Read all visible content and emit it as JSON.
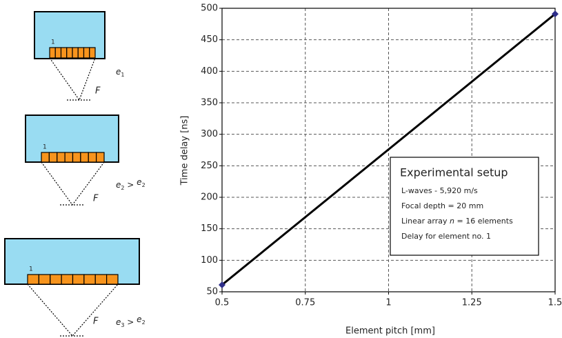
{
  "diagrams": [
    {
      "element_label": "1",
      "pitch_label": [
        "e",
        "1"
      ],
      "focus_label": "F"
    },
    {
      "element_label": "1",
      "pitch_label": [
        "e",
        "2",
        " > ",
        "e",
        "2"
      ],
      "focus_label": "F"
    },
    {
      "element_label": "1",
      "pitch_label": [
        "e",
        "3",
        " > ",
        "e",
        "2"
      ],
      "focus_label": "F"
    }
  ],
  "chart_data": {
    "type": "line",
    "x_label": "Element pitch [mm]",
    "y_label": "Time delay [ns]",
    "x": [
      0.5,
      1.5
    ],
    "series": [
      {
        "color": "#000000",
        "marker_color": "#2e2e8a",
        "values": [
          61,
          491
        ]
      }
    ],
    "xlim": [
      0.5,
      1.5
    ],
    "xticks": [
      0.5,
      0.75,
      1,
      1.25,
      1.5
    ],
    "ylim": [
      50,
      500
    ],
    "yticks": [
      50,
      100,
      150,
      200,
      250,
      300,
      350,
      400,
      450,
      500
    ],
    "grid": true,
    "annotation": {
      "title": "Experimental setup",
      "lines": [
        [
          "L-waves - 5,920 m/s"
        ],
        [
          "Focal depth = 20 mm"
        ],
        [
          "Linear array ",
          "n",
          " = 16 elements"
        ],
        [
          "Delay for element no. 1"
        ]
      ]
    }
  }
}
